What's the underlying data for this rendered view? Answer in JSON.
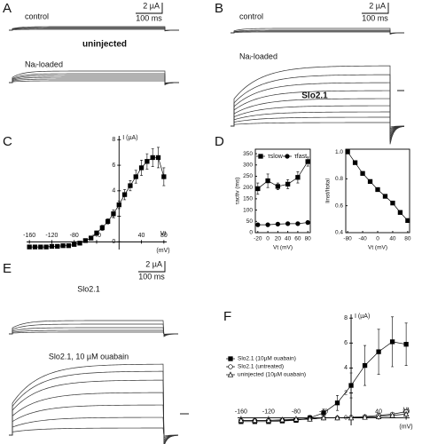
{
  "figure": {
    "A": {
      "label": "A",
      "control": "control",
      "scale_current": "2 µA",
      "scale_time": "100 ms",
      "title": "uninjected",
      "loaded": "Naᵢ-loaded"
    },
    "B": {
      "label": "B",
      "control": "control",
      "scale_current": "2 µA",
      "scale_time": "100 ms",
      "title": "Slo2.1",
      "loaded": "Naᵢ-loaded"
    },
    "C": {
      "label": "C"
    },
    "D": {
      "label": "D"
    },
    "E": {
      "label": "E",
      "scale_current": "2 µA",
      "scale_time": "100 ms",
      "top": "Slo2.1",
      "bottom": "Slo2.1, 10 µM ouabain"
    },
    "F": {
      "label": "F"
    }
  },
  "chart_data": [
    {
      "type": "line",
      "axes": "cross",
      "ylabel": "I (µA)",
      "xlabel": [
        "Vt",
        "(mV)"
      ],
      "xlim": [
        -165,
        85
      ],
      "ylim": [
        -0.6,
        8.3
      ],
      "xticks": [
        -160,
        -120,
        -80,
        -40,
        40,
        80
      ],
      "yticks": [
        0,
        2,
        4,
        6,
        8
      ],
      "x": [
        -160,
        -150,
        -140,
        -130,
        -120,
        -110,
        -100,
        -90,
        -80,
        -70,
        -60,
        -50,
        -40,
        -30,
        -20,
        -10,
        0,
        10,
        20,
        30,
        40,
        50,
        60,
        70,
        80
      ],
      "series": [
        {
          "color": "#000000",
          "marker": "square",
          "marker_fill": "#000000",
          "values": [
            -0.4,
            -0.4,
            -0.4,
            -0.4,
            -0.35,
            -0.35,
            -0.3,
            -0.3,
            -0.2,
            -0.1,
            0.1,
            0.3,
            0.7,
            1.1,
            1.6,
            2.2,
            2.9,
            3.7,
            4.4,
            5.1,
            5.8,
            6.3,
            6.6,
            6.6,
            5.1
          ],
          "errors": [
            0.05,
            0.05,
            0.05,
            0.05,
            0.05,
            0.05,
            0.05,
            0.05,
            0.1,
            0.1,
            0.1,
            0.1,
            0.15,
            0.2,
            0.2,
            0.3,
            0.3,
            0.4,
            0.4,
            0.5,
            0.6,
            0.6,
            0.7,
            0.8,
            0.7
          ]
        }
      ]
    },
    {
      "type": "line",
      "axes": "box",
      "ylabel": "τactiv (ms)",
      "xlabel": "Vt (mV)",
      "legend": "top",
      "xlim": [
        -25,
        85
      ],
      "ylim": [
        0,
        370
      ],
      "xticks": [
        -20,
        0,
        20,
        40,
        60,
        80
      ],
      "yticks": [
        0,
        50,
        100,
        150,
        200,
        250,
        300,
        350
      ],
      "x": [
        -20,
        0,
        20,
        40,
        60,
        80
      ],
      "series": [
        {
          "name": "τslow",
          "color": "#000000",
          "marker": "square",
          "marker_fill": "#000000",
          "values": [
            195,
            230,
            205,
            215,
            245,
            315
          ],
          "errors": [
            25,
            30,
            15,
            20,
            25,
            20
          ]
        },
        {
          "name": "τfast",
          "color": "#000000",
          "marker": "circle",
          "marker_fill": "#000000",
          "values": [
            35,
            35,
            38,
            40,
            40,
            45
          ],
          "errors": [
            3,
            3,
            3,
            3,
            3,
            3
          ]
        }
      ]
    },
    {
      "type": "line",
      "axes": "box",
      "ylabel": "Iinst/Itotal",
      "xlabel": "Vt (mV)",
      "xlim": [
        -85,
        85
      ],
      "ylim": [
        0.4,
        1.02
      ],
      "xticks": [
        -80,
        -40,
        0,
        40,
        80
      ],
      "yticks": [
        0.4,
        0.6,
        0.8,
        {
          "value": 1,
          "label": "1.0"
        }
      ],
      "x": [
        -80,
        -60,
        -40,
        -20,
        0,
        20,
        40,
        60,
        80
      ],
      "series": [
        {
          "color": "#000000",
          "marker": "square",
          "marker_fill": "#000000",
          "values": [
            1.0,
            0.92,
            0.84,
            0.78,
            0.72,
            0.67,
            0.62,
            0.55,
            0.49
          ]
        }
      ]
    },
    {
      "type": "line",
      "axes": "cross",
      "ylabel": "I (µA)",
      "xlabel": [
        "Vt",
        "(mV)"
      ],
      "legend": "upper left",
      "xlim": [
        -165,
        85
      ],
      "ylim": [
        -0.6,
        8.3
      ],
      "xticks": [
        -160,
        -120,
        -80,
        -40,
        40,
        80
      ],
      "yticks": [
        0,
        2,
        4,
        6,
        8
      ],
      "x": [
        -160,
        -140,
        -120,
        -100,
        -80,
        -60,
        -40,
        -20,
        0,
        20,
        40,
        60,
        80
      ],
      "series": [
        {
          "name": "Slo2.1 (10µM ouabain)",
          "color": "#000000",
          "marker": "square",
          "marker_fill": "#000000",
          "values": [
            -0.3,
            -0.3,
            -0.3,
            -0.25,
            -0.2,
            0.0,
            0.4,
            1.2,
            2.6,
            4.2,
            5.3,
            6.1,
            5.9
          ],
          "errors": [
            0.1,
            0.1,
            0.1,
            0.1,
            0.1,
            0.2,
            0.3,
            0.6,
            1.0,
            1.6,
            1.8,
            2.0,
            1.7
          ]
        },
        {
          "name": "Slo2.1 (untreated)",
          "color": "#000000",
          "marker": "circle",
          "marker_fill": "#ffffff",
          "values": [
            -0.2,
            -0.2,
            -0.2,
            -0.2,
            -0.15,
            -0.1,
            0,
            0,
            0.05,
            0.1,
            0.2,
            0.3,
            0.5
          ],
          "errors": [
            0.05,
            0.05,
            0.05,
            0.05,
            0.05,
            0.05,
            0.05,
            0.05,
            0.05,
            0.05,
            0.05,
            0.05,
            0.1
          ]
        },
        {
          "name": "uninjected (10µM ouabain)",
          "color": "#000000",
          "marker": "triangle",
          "marker_fill": "#ffffff",
          "values": [
            -0.2,
            -0.2,
            -0.2,
            -0.15,
            -0.1,
            -0.1,
            0,
            0,
            0,
            0.05,
            0.1,
            0.2,
            0.3
          ],
          "errors": [
            0.05,
            0.05,
            0.05,
            0.05,
            0.05,
            0.05,
            0.05,
            0.05,
            0.05,
            0.05,
            0.05,
            0.05,
            0.1
          ]
        }
      ]
    }
  ]
}
